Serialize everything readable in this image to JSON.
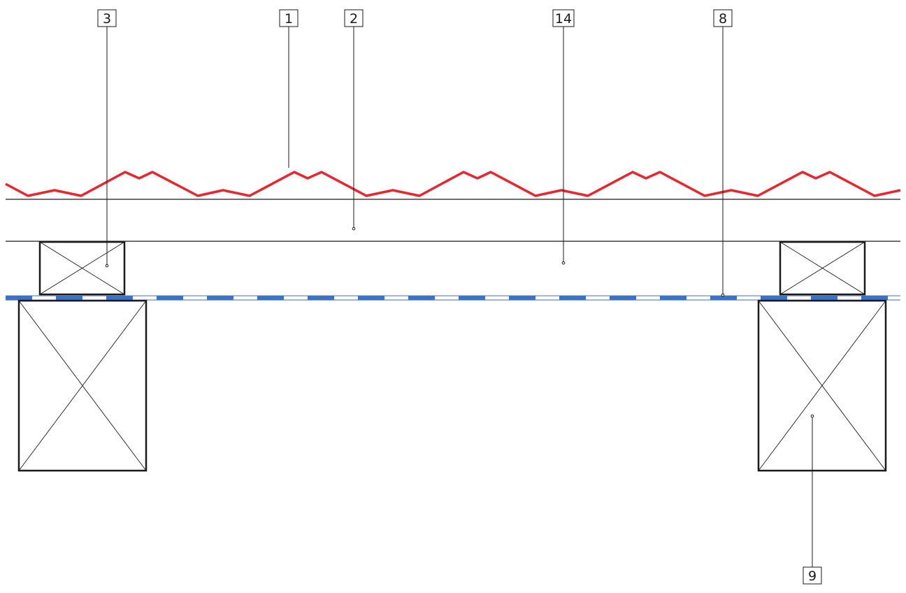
{
  "callouts": {
    "c1": "1",
    "c2": "2",
    "c3": "3",
    "c8": "8",
    "c9": "9",
    "c14": "14"
  },
  "colors": {
    "roof_profile": "#e8262d",
    "membrane": "#3a72c4",
    "lines": "#1a1a1a"
  }
}
